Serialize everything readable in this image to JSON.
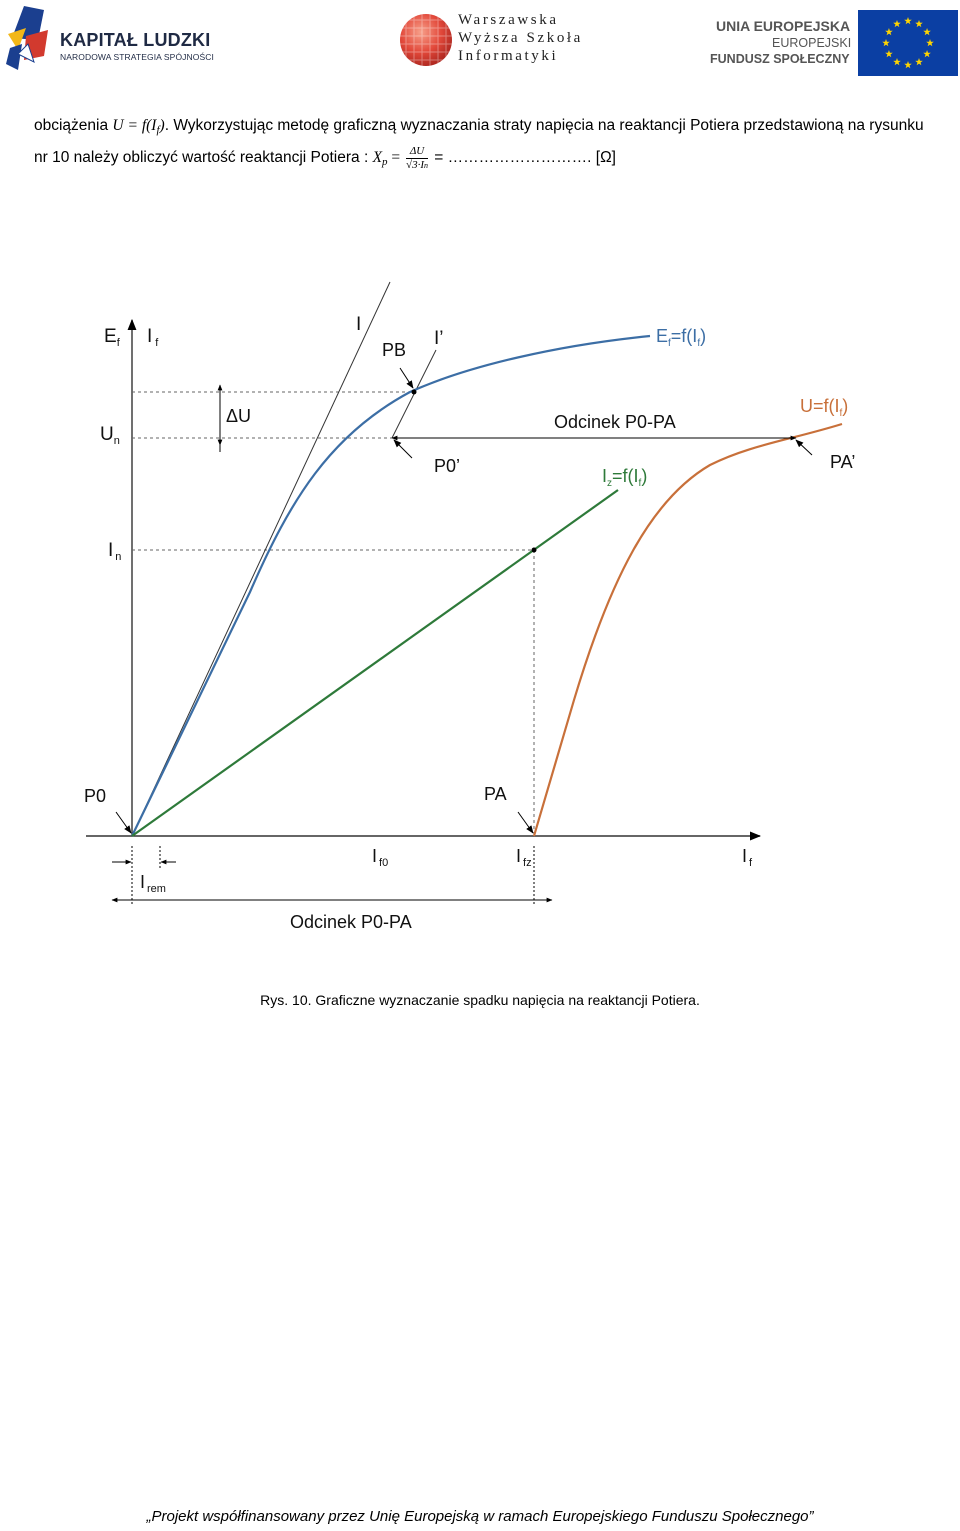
{
  "header": {
    "logo_left": {
      "title": "KAPITAŁ LUDZKI",
      "subtitle": "NARODOWA STRATEGIA SPÓJNOŚCI"
    },
    "logo_center": {
      "line1": "Warszawska",
      "line2": "Wyższa Szkoła",
      "line3": "Informatyki"
    },
    "logo_right": {
      "line1": "UNIA EUROPEJSKA",
      "line2": "EUROPEJSKI",
      "line3": "FUNDUSZ SPOŁECZNY"
    }
  },
  "text": {
    "p1_start": "obciążenia ",
    "p1_math": "U = f(I",
    "p1_math_sub": "f",
    "p1_math_end": ")",
    "p1_rest": ". Wykorzystując metodę graficzną wyznaczania straty napięcia na reaktancji Potiera przedstawioną na rysunku nr 10 należy obliczyć wartość reaktancji Potiera : ",
    "formula_lhs": "X",
    "formula_lhs_sub": "p",
    "formula_eq": " = ",
    "formula_num": "ΔU",
    "formula_den": "√3·I",
    "formula_den_sub": "n",
    "formula_tail": " = ………………………. [Ω]"
  },
  "figure": {
    "labels": {
      "ef_axis": "E",
      "ef_axis_sub": "f",
      "if_axis": "I",
      "if_axis_sub": "f",
      "un": "U",
      "un_sub": "n",
      "in": "I",
      "in_sub": "n",
      "delta_u": "ΔU",
      "line_i": "I",
      "line_i_prime": "I’",
      "pb": "PB",
      "p0_prime": "P0’",
      "pa_prime": "PA’",
      "p0": "P0",
      "pa": "PA",
      "segment_top": "Odcinek P0-PA",
      "segment_bottom": "Odcinek P0-PA",
      "ef_curve": "E",
      "ef_curve_sub": "f",
      "ef_curve_mid": "=f(I",
      "ef_curve_sub2": "f",
      "ef_curve_end": ")",
      "u_curve": "U=f(I",
      "u_curve_sub": "f",
      "u_curve_end": ")",
      "iz_curve": "I",
      "iz_curve_sub": "z",
      "iz_curve_mid": "=f(I",
      "iz_curve_sub2": "f",
      "iz_curve_end": ")",
      "if0": "I",
      "if0_sub": "f0",
      "ifz": "I",
      "ifz_sub": "fz",
      "if_x": "I",
      "if_x_sub": "f",
      "irem": "I",
      "irem_sub": "rem"
    },
    "colors": {
      "ef": "#3c6ea5",
      "u": "#c8703a",
      "iz": "#2e7a3a",
      "axis": "#333333",
      "dashed": "#666666"
    }
  },
  "caption": "Rys. 10. Graficzne wyznaczanie spadku napięcia na reaktancji Potiera.",
  "footer": "„Projekt współfinansowany przez Unię Europejską w ramach Europejskiego Funduszu Społecznego”"
}
